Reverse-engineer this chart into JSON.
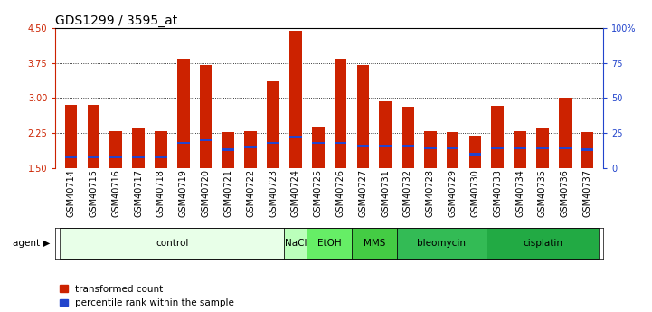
{
  "title": "GDS1299 / 3595_at",
  "samples": [
    "GSM40714",
    "GSM40715",
    "GSM40716",
    "GSM40717",
    "GSM40718",
    "GSM40719",
    "GSM40720",
    "GSM40721",
    "GSM40722",
    "GSM40723",
    "GSM40724",
    "GSM40725",
    "GSM40726",
    "GSM40727",
    "GSM40731",
    "GSM40732",
    "GSM40728",
    "GSM40729",
    "GSM40730",
    "GSM40733",
    "GSM40734",
    "GSM40735",
    "GSM40736",
    "GSM40737"
  ],
  "transformed_count": [
    2.85,
    2.85,
    2.3,
    2.35,
    2.3,
    3.85,
    3.7,
    2.27,
    2.3,
    3.35,
    4.45,
    2.38,
    3.85,
    3.7,
    2.93,
    2.82,
    2.3,
    2.27,
    2.2,
    2.83,
    2.3,
    2.34,
    3.0,
    2.28
  ],
  "percentile_rank": [
    8,
    8,
    8,
    8,
    8,
    18,
    20,
    13,
    15,
    18,
    22,
    18,
    18,
    16,
    16,
    16,
    14,
    14,
    10,
    14,
    14,
    14,
    14,
    13
  ],
  "ymin": 1.5,
  "ymax": 4.5,
  "yticks": [
    1.5,
    2.25,
    3.0,
    3.75,
    4.5
  ],
  "right_yticks": [
    0,
    25,
    50,
    75,
    100
  ],
  "bar_color": "#cc2200",
  "percentile_color": "#2244cc",
  "bar_width": 0.55,
  "agents": [
    {
      "label": "control",
      "start": 0,
      "end": 10,
      "color": "#e8ffe8"
    },
    {
      "label": "NaCl",
      "start": 10,
      "end": 11,
      "color": "#bbffbb"
    },
    {
      "label": "EtOH",
      "start": 11,
      "end": 13,
      "color": "#66ee66"
    },
    {
      "label": "MMS",
      "start": 13,
      "end": 15,
      "color": "#44cc44"
    },
    {
      "label": "bleomycin",
      "start": 15,
      "end": 19,
      "color": "#33bb55"
    },
    {
      "label": "cisplatin",
      "start": 19,
      "end": 24,
      "color": "#22aa44"
    }
  ],
  "legend_items": [
    "transformed count",
    "percentile rank within the sample"
  ],
  "legend_colors": [
    "#cc2200",
    "#2244cc"
  ],
  "background_color": "#ffffff",
  "title_fontsize": 10,
  "tick_fontsize": 7,
  "agent_label_fontsize": 7.5
}
